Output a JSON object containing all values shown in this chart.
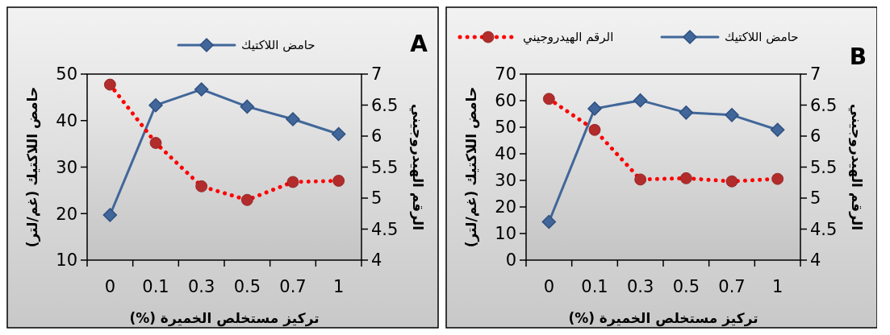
{
  "chart_data": [
    {
      "type": "line",
      "categories": [
        "0",
        "0.1",
        "0.3",
        "0.5",
        "0.7",
        "1"
      ],
      "xlabel": "تركيز مستخلص الخميرة (%)",
      "ylabel": "حامض اللاكتيك (غم/لتر)",
      "y2label": "الرقم الهيدروجيني",
      "ylim": [
        10,
        50
      ],
      "yticks": [
        10,
        20,
        30,
        40,
        50
      ],
      "y2lim": [
        4,
        7
      ],
      "y2ticks": [
        4,
        4.5,
        5,
        5.5,
        6,
        6.5,
        7
      ],
      "legend": "top",
      "grid": false,
      "annotations": [
        "A"
      ],
      "series": [
        {
          "name": "حامض اللاكتيك",
          "color": "#41679a",
          "values": [
            19.7,
            43.3,
            46.7,
            43,
            40.3,
            37.1
          ],
          "marker": "diamond",
          "line_style": "solid"
        },
        {
          "color": "#ff0000",
          "axis": "y2",
          "values": [
            6.83,
            5.89,
            5.19,
            4.97,
            5.26,
            5.28
          ],
          "marker": "circle",
          "line_style": "dotted"
        }
      ]
    },
    {
      "type": "line",
      "categories": [
        "0",
        "0.1",
        "0.3",
        "0.5",
        "0.7",
        "1"
      ],
      "xlabel": "تركيز مستخلص الخميرة (%)",
      "ylabel": "حامض اللاكتيك (غم/لتر)",
      "y2label": "الرقم الهيدروجيني",
      "ylim": [
        0,
        70
      ],
      "yticks": [
        0,
        10,
        20,
        30,
        40,
        50,
        60,
        70
      ],
      "y2lim": [
        4,
        7
      ],
      "y2ticks": [
        4,
        4.5,
        5,
        5.5,
        6,
        6.5,
        7
      ],
      "legend": "top",
      "grid": false,
      "annotations": [
        "B"
      ],
      "series": [
        {
          "name": "حامض اللاكتيك",
          "color": "#41679a",
          "values": [
            14.4,
            57,
            60.1,
            55.5,
            54.6,
            49
          ],
          "marker": "diamond",
          "line_style": "solid"
        },
        {
          "name": "الرقم الهيدروجيني",
          "color": "#ff0000",
          "axis": "y2",
          "values": [
            6.6,
            6.1,
            5.3,
            5.32,
            5.27,
            5.31
          ],
          "marker": "circle",
          "line_style": "dotted"
        }
      ]
    }
  ]
}
